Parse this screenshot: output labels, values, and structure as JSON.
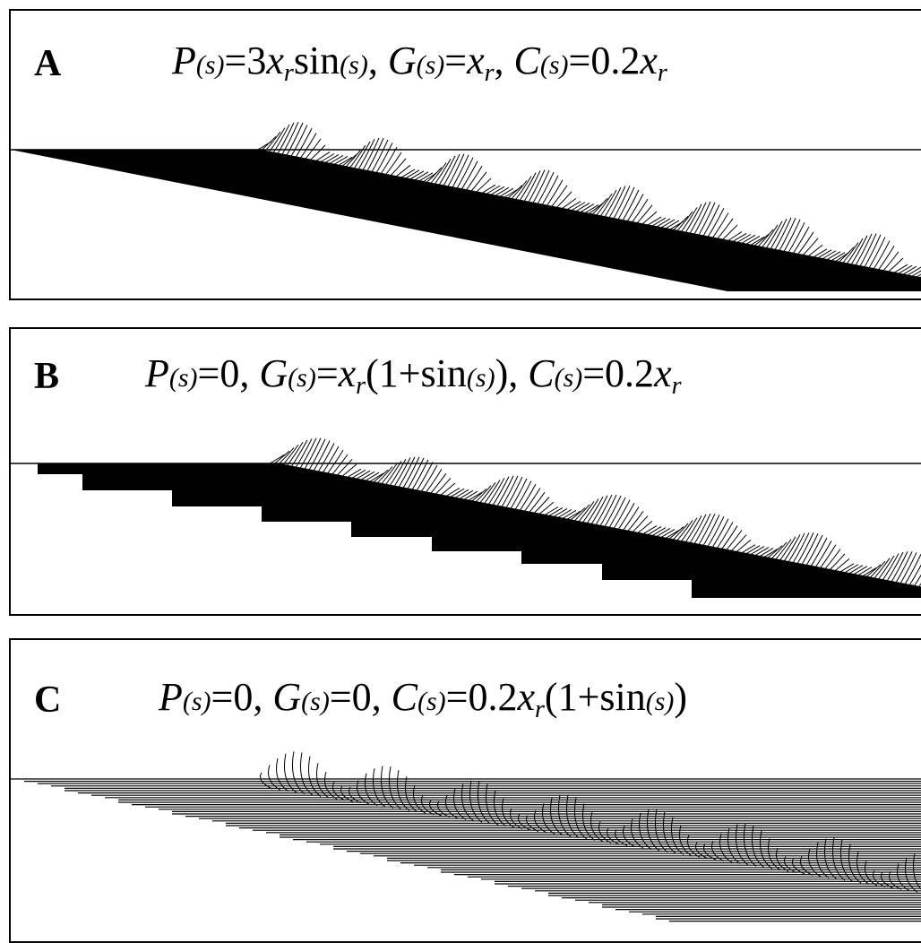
{
  "panels": [
    {
      "letter": "A",
      "formula": "P(s)=3xr sin(s), G(s)=xr, C(s)=0.2xr"
    },
    {
      "letter": "B",
      "formula": "P(s)=0, G(s)=xr(1+sin(s)), C(s)=0.2xr"
    },
    {
      "letter": "C",
      "formula": "P(s)=0, G(s)=0, C(s)=0.2xr(1+sin(s))"
    }
  ]
}
